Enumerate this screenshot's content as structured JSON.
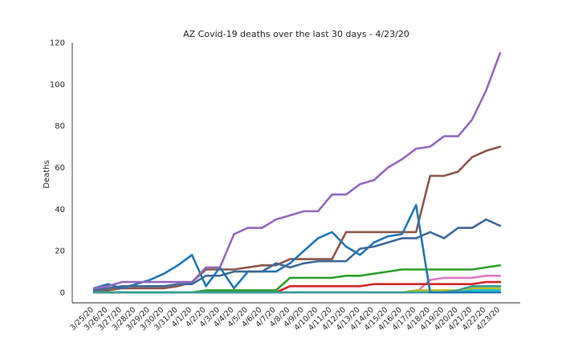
{
  "chart_data": {
    "type": "line",
    "title": "AZ Covid-19 deaths over the last 30 days - 4/23/20",
    "xlabel": "",
    "ylabel": "Deaths",
    "ylim": [
      -5,
      120
    ],
    "yticks": [
      0,
      20,
      40,
      60,
      80,
      100,
      120
    ],
    "grid": false,
    "legend": "none",
    "categories": [
      "3/25/20",
      "3/26/20",
      "3/27/20",
      "3/28/20",
      "3/29/20",
      "3/30/20",
      "3/31/20",
      "4/1/20",
      "4/2/20",
      "4/3/20",
      "4/4/20",
      "4/5/20",
      "4/6/20",
      "4/7/20",
      "4/8/20",
      "4/9/20",
      "4/10/20",
      "4/11/20",
      "4/12/20",
      "4/13/20",
      "4/14/20",
      "4/15/20",
      "4/16/20",
      "4/17/20",
      "4/18/20",
      "4/19/20",
      "4/20/20",
      "4/21/20",
      "4/22/20",
      "4/23/20"
    ],
    "series": [
      {
        "color": "#8c564b",
        "values": [
          1,
          1,
          2,
          2,
          2,
          2,
          3,
          5,
          11,
          11,
          11,
          12,
          13,
          13,
          16,
          16,
          16,
          16,
          29,
          29,
          29,
          29,
          29,
          29,
          56,
          56,
          58,
          65,
          68,
          70
        ]
      },
      {
        "color": "#e377c2",
        "values": [
          0,
          0,
          0,
          0,
          0,
          0,
          0,
          0,
          0,
          0,
          0,
          0,
          0,
          0,
          0,
          0,
          0,
          0,
          0,
          0,
          0,
          0,
          0,
          0,
          6,
          7,
          7,
          7,
          8,
          8
        ]
      },
      {
        "color": "#d62728",
        "values": [
          0,
          0,
          0,
          0,
          0,
          0,
          0,
          0,
          0,
          0,
          0,
          0,
          0,
          0,
          3,
          3,
          3,
          3,
          3,
          3,
          4,
          4,
          4,
          4,
          4,
          4,
          4,
          4,
          5,
          5
        ]
      },
      {
        "color": "#bcbd22",
        "values": [
          0,
          0,
          0,
          0,
          0,
          0,
          0,
          0,
          0,
          0,
          0,
          0,
          0,
          0,
          0,
          0,
          0,
          0,
          0,
          0,
          0,
          0,
          0,
          1,
          1,
          1,
          1,
          2,
          2,
          2
        ]
      },
      {
        "color": "#17becf",
        "values": [
          0,
          0,
          0,
          0,
          0,
          0,
          0,
          0,
          0,
          0,
          0,
          0,
          0,
          0,
          0,
          0,
          0,
          0,
          0,
          0,
          0,
          0,
          0,
          0,
          0,
          0,
          0,
          1,
          1,
          1
        ]
      },
      {
        "color": "#2ca02c",
        "values": [
          0,
          0,
          0,
          0,
          0,
          0,
          0,
          0,
          1,
          1,
          1,
          1,
          1,
          1,
          7,
          7,
          7,
          7,
          8,
          8,
          9,
          10,
          11,
          11,
          11,
          11,
          11,
          11,
          12,
          13
        ]
      },
      {
        "color": "#3a9b9b",
        "values": [
          0,
          0,
          0,
          0,
          0,
          0,
          0,
          0,
          0,
          0,
          0,
          0,
          0,
          0,
          0,
          0,
          0,
          0,
          0,
          0,
          0,
          0,
          0,
          0,
          0,
          0,
          1,
          3,
          3,
          3
        ]
      },
      {
        "color": "#1f77b4",
        "values": [
          2,
          4,
          2,
          4,
          6,
          9,
          13,
          18,
          3,
          12,
          2,
          10,
          10,
          10,
          14,
          20,
          26,
          29,
          22,
          18,
          24,
          27,
          28,
          42,
          0,
          0,
          0,
          0,
          0,
          0
        ]
      },
      {
        "color": "#3e6a99",
        "values": [
          1,
          2,
          3,
          3,
          3,
          3,
          4,
          4,
          8,
          8,
          10,
          10,
          10,
          14,
          12,
          14,
          15,
          15,
          15,
          21,
          22,
          24,
          26,
          26,
          29,
          26,
          31,
          31,
          35,
          32
        ]
      },
      {
        "color": "#9467bd",
        "values": [
          2,
          3,
          5,
          5,
          5,
          5,
          5,
          5,
          12,
          12,
          28,
          31,
          31,
          35,
          37,
          39,
          39,
          47,
          47,
          52,
          54,
          60,
          64,
          69,
          70,
          75,
          75,
          83,
          97,
          115
        ]
      }
    ]
  }
}
